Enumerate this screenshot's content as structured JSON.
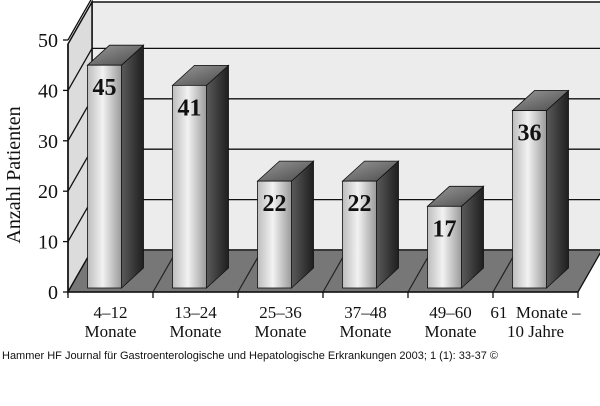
{
  "chart_data": {
    "type": "bar",
    "ylabel": "Anzahl Patienten",
    "ylim": [
      0,
      50
    ],
    "yticks": [
      0,
      10,
      20,
      30,
      40,
      50
    ],
    "grid": true,
    "categories": [
      [
        "4–12",
        "Monate"
      ],
      [
        "13–24",
        "Monate"
      ],
      [
        "25–36",
        "Monate"
      ],
      [
        "37–48",
        "Monate"
      ],
      [
        "49–60",
        "Monate"
      ],
      [
        "61  Monate –",
        "10 Jahre"
      ]
    ],
    "values": [
      45,
      41,
      22,
      22,
      17,
      36
    ]
  },
  "caption": "Hammer HF Journal für Gastroenterologische und Hepatologische Erkrankungen 2003; 1 (1): 33-37 ©"
}
